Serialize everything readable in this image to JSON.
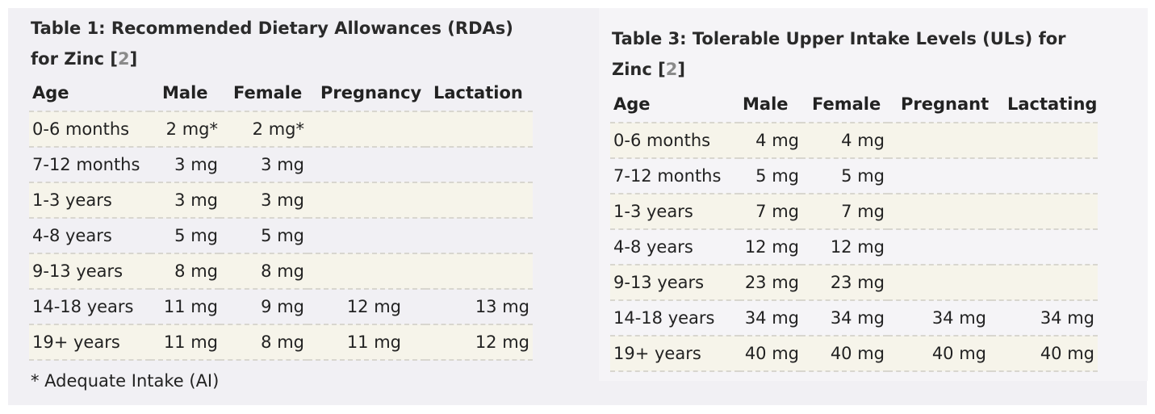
{
  "table1": {
    "title_line1": "Table 1: Recommended Dietary Allowances (RDAs)",
    "title_line2_prefix": "for Zinc [",
    "title_ref": "2",
    "title_line2_suffix": "]",
    "headers": [
      "Age",
      "Male",
      "Female",
      "Pregnancy",
      "Lactation"
    ],
    "rows": [
      [
        "0-6 months",
        "2 mg*",
        "2 mg*",
        "",
        ""
      ],
      [
        "7-12 months",
        "3 mg",
        "3 mg",
        "",
        ""
      ],
      [
        "1-3 years",
        "3 mg",
        "3 mg",
        "",
        ""
      ],
      [
        "4-8 years",
        "5 mg",
        "5 mg",
        "",
        ""
      ],
      [
        "9-13 years",
        "8 mg",
        "8 mg",
        "",
        ""
      ],
      [
        "14-18 years",
        "11 mg",
        "9 mg",
        "12 mg",
        "13 mg"
      ],
      [
        "19+ years",
        "11 mg",
        "8 mg",
        "11 mg",
        "12 mg"
      ]
    ],
    "footnote": "* Adequate Intake (AI)"
  },
  "table3": {
    "title_line1": "Table 3: Tolerable Upper Intake Levels (ULs) for",
    "title_line2_prefix": "Zinc [",
    "title_ref": "2",
    "title_line2_suffix": "]",
    "headers": [
      "Age",
      "Male",
      "Female",
      "Pregnant",
      "Lactating"
    ],
    "rows": [
      [
        "0-6 months",
        "4 mg",
        "4 mg",
        "",
        ""
      ],
      [
        "7-12 months",
        "5 mg",
        "5 mg",
        "",
        ""
      ],
      [
        "1-3 years",
        "7 mg",
        "7 mg",
        "",
        ""
      ],
      [
        "4-8 years",
        "12 mg",
        "12 mg",
        "",
        ""
      ],
      [
        "9-13 years",
        "23 mg",
        "23 mg",
        "",
        ""
      ],
      [
        "14-18 years",
        "34 mg",
        "34 mg",
        "34 mg",
        "34 mg"
      ],
      [
        "19+ years",
        "40 mg",
        "40 mg",
        "40 mg",
        "40 mg"
      ]
    ]
  },
  "colors": {
    "panel_bg": "#f1f0f4",
    "row_shaded": "#f6f4ea",
    "ref_link": "#8a8a8a"
  }
}
